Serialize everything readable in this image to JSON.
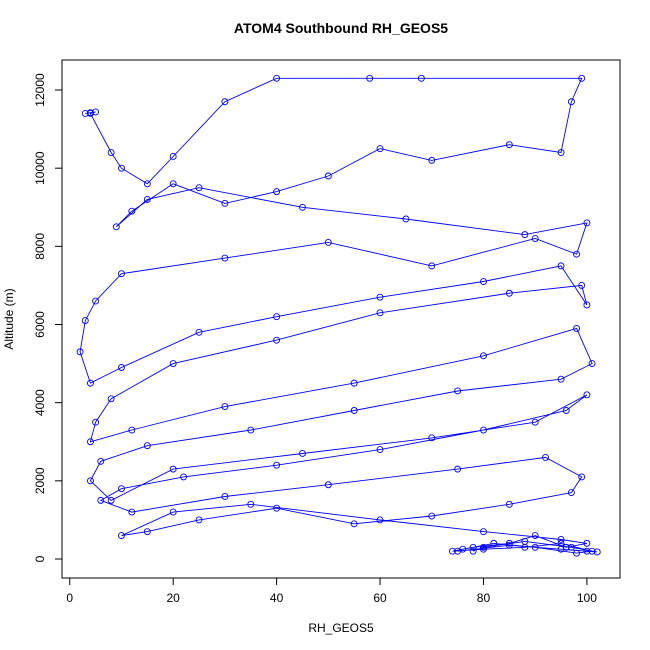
{
  "chart_data": {
    "type": "line",
    "title": "ATOM4 Southbound RH_GEOS5",
    "x_label": "RH_GEOS5",
    "y_label": "Altitude (m)",
    "color": "#0000ff",
    "marker": "circle",
    "x": [
      3,
      4,
      5,
      4,
      8,
      10,
      15,
      20,
      30,
      40,
      58,
      68,
      99,
      97,
      95,
      85,
      70,
      60,
      50,
      40,
      30,
      20,
      12,
      9,
      15,
      25,
      45,
      65,
      88,
      100,
      98,
      90,
      70,
      50,
      30,
      10,
      5,
      3,
      2,
      4,
      10,
      25,
      40,
      60,
      80,
      95,
      100,
      99,
      85,
      60,
      40,
      20,
      8,
      5,
      4,
      12,
      30,
      55,
      80,
      98,
      101,
      95,
      75,
      55,
      35,
      15,
      6,
      4,
      8,
      20,
      45,
      70,
      90,
      100,
      96,
      80,
      60,
      40,
      22,
      10,
      6,
      12,
      30,
      50,
      75,
      92,
      99,
      97,
      85,
      70,
      55,
      40,
      25,
      15,
      10,
      20,
      35,
      60,
      80,
      95,
      100,
      96,
      90,
      85,
      78,
      74,
      80,
      88,
      95,
      101,
      98,
      90,
      82,
      76,
      75,
      85,
      95,
      100,
      102,
      97,
      88,
      80,
      78
    ],
    "values": [
      11400,
      11420,
      11440,
      11400,
      10400,
      10000,
      9600,
      10300,
      11700,
      12300,
      12300,
      12300,
      12300,
      11700,
      10400,
      10600,
      10200,
      10500,
      9800,
      9400,
      9100,
      9600,
      8900,
      8500,
      9200,
      9500,
      9000,
      8700,
      8300,
      8600,
      7800,
      8200,
      7500,
      8100,
      7700,
      7300,
      6600,
      6100,
      5300,
      4500,
      4900,
      5800,
      6200,
      6700,
      7100,
      7500,
      6500,
      7000,
      6800,
      6300,
      5600,
      5000,
      4100,
      3500,
      3000,
      3300,
      3900,
      4500,
      5200,
      5900,
      5000,
      4600,
      4300,
      3800,
      3300,
      2900,
      2500,
      2000,
      1500,
      2300,
      2700,
      3100,
      3500,
      4200,
      3800,
      3300,
      2800,
      2400,
      2100,
      1800,
      1500,
      1200,
      1600,
      1900,
      2300,
      2600,
      2100,
      1700,
      1400,
      1100,
      900,
      1300,
      1000,
      700,
      600,
      1200,
      1400,
      1000,
      700,
      500,
      400,
      300,
      600,
      400,
      300,
      200,
      250,
      300,
      400,
      200,
      150,
      300,
      400,
      250,
      200,
      350,
      250,
      200,
      180,
      300,
      450,
      300,
      200
    ],
    "xlim": [
      -1.5,
      106.4
    ],
    "ylim": [
      -486,
      12768
    ],
    "xticks": [
      0,
      20,
      40,
      60,
      80,
      100
    ],
    "yticks": [
      0,
      2000,
      4000,
      6000,
      8000,
      10000,
      12000
    ]
  }
}
